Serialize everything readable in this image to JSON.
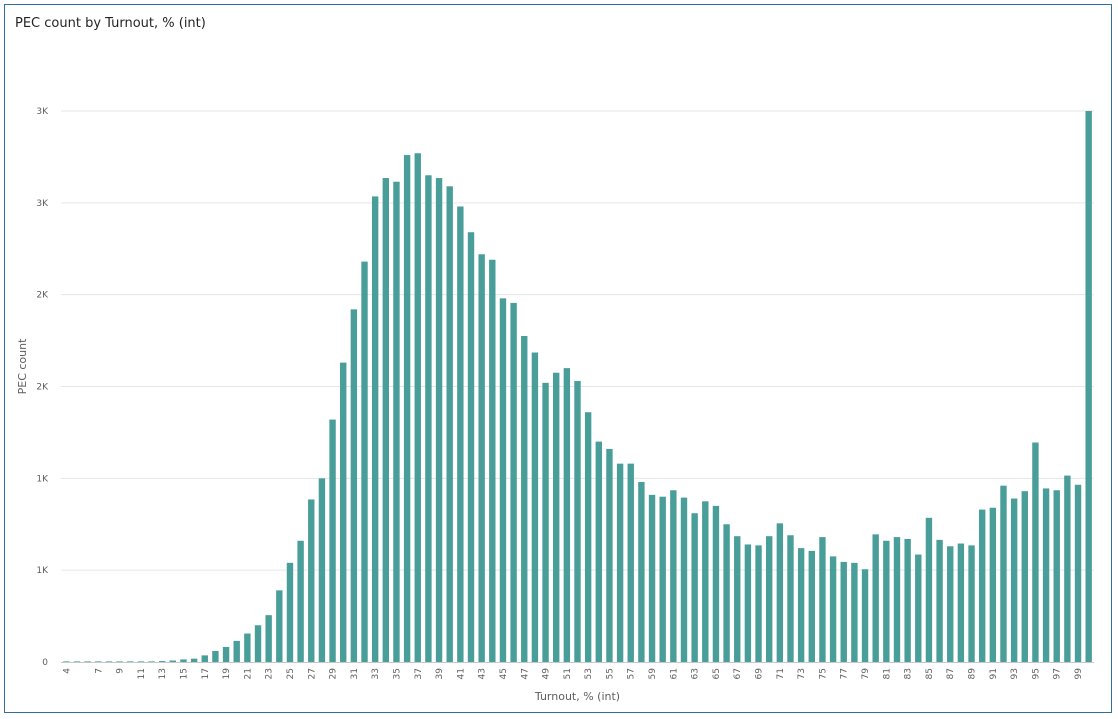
{
  "visual": {
    "title": "PEC count by Turnout, % (int)"
  },
  "colors": {
    "bar": "#4a9e99",
    "grid": "#e6e6e6",
    "border": "#2f6f9a"
  },
  "chart_data": {
    "type": "bar",
    "title": "PEC count by Turnout, % (int)",
    "xlabel": "Turnout, % (int)",
    "ylabel": "PEC count",
    "ylim": [
      0,
      3000
    ],
    "y_ticks": [
      {
        "value": 0,
        "label": "0"
      },
      {
        "value": 500,
        "label": "1K"
      },
      {
        "value": 1000,
        "label": "1K"
      },
      {
        "value": 1500,
        "label": "2K"
      },
      {
        "value": 2000,
        "label": "2K"
      },
      {
        "value": 2500,
        "label": "3K"
      },
      {
        "value": 3000,
        "label": "3K"
      }
    ],
    "grid": true,
    "legend": "none",
    "x_tick_labels": [
      "4",
      "7",
      "9",
      "11",
      "13",
      "15",
      "17",
      "19",
      "21",
      "23",
      "25",
      "27",
      "29",
      "31",
      "33",
      "35",
      "37",
      "39",
      "41",
      "43",
      "45",
      "47",
      "49",
      "51",
      "53",
      "55",
      "57",
      "59",
      "61",
      "63",
      "65",
      "67",
      "69",
      "71",
      "73",
      "75",
      "77",
      "79",
      "81",
      "83",
      "85",
      "87",
      "89",
      "91",
      "93",
      "95",
      "97",
      "99"
    ],
    "x": [
      4,
      5,
      6,
      7,
      8,
      9,
      10,
      11,
      12,
      13,
      14,
      15,
      16,
      17,
      18,
      19,
      20,
      21,
      22,
      23,
      24,
      25,
      26,
      27,
      28,
      29,
      30,
      31,
      32,
      33,
      34,
      35,
      36,
      37,
      38,
      39,
      40,
      41,
      42,
      43,
      44,
      45,
      46,
      47,
      48,
      49,
      50,
      51,
      52,
      53,
      54,
      55,
      56,
      57,
      58,
      59,
      60,
      61,
      62,
      63,
      64,
      65,
      66,
      67,
      68,
      69,
      70,
      71,
      72,
      73,
      74,
      75,
      76,
      77,
      78,
      79,
      80,
      81,
      82,
      83,
      84,
      85,
      86,
      87,
      88,
      89,
      90,
      91,
      92,
      93,
      94,
      95,
      96,
      97,
      98,
      99,
      100
    ],
    "values": [
      1,
      1,
      1,
      1,
      1,
      1,
      1,
      1,
      1,
      5,
      8,
      14,
      18,
      36,
      60,
      82,
      115,
      155,
      200,
      255,
      390,
      540,
      660,
      885,
      1000,
      1320,
      1630,
      1920,
      2180,
      2535,
      2635,
      2615,
      2760,
      2770,
      2650,
      2635,
      2590,
      2480,
      2340,
      2220,
      2190,
      1980,
      1955,
      1775,
      1685,
      1520,
      1575,
      1600,
      1530,
      1360,
      1200,
      1160,
      1080,
      1080,
      980,
      910,
      900,
      935,
      895,
      810,
      875,
      850,
      750,
      685,
      640,
      635,
      685,
      755,
      690,
      620,
      605,
      680,
      575,
      545,
      540,
      505,
      695,
      660,
      680,
      670,
      585,
      785,
      665,
      630,
      645,
      635,
      830,
      840,
      960,
      890,
      930,
      1195,
      945,
      935,
      1015,
      965,
      3000
    ]
  }
}
